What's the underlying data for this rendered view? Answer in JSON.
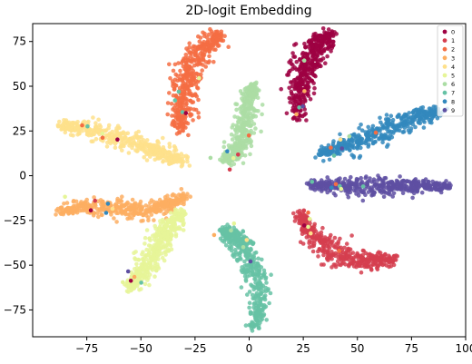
{
  "chart_data": {
    "type": "scatter",
    "title": "2D-logit Embedding",
    "xlabel": "",
    "ylabel": "",
    "xlim": [
      -100,
      100
    ],
    "ylim": [
      -90,
      85
    ],
    "xticks": [
      -75,
      -50,
      -25,
      0,
      25,
      50,
      75,
      100
    ],
    "yticks": [
      -75,
      -50,
      -25,
      0,
      25,
      50,
      75
    ],
    "grid": false,
    "legend_position": "top-right",
    "legend_labels": [
      "0",
      "1",
      "2",
      "3",
      "4",
      "5",
      "6",
      "7",
      "8",
      "9"
    ],
    "colors": [
      "#9e0142",
      "#d53e4f",
      "#f46d43",
      "#fdae61",
      "#fee08b",
      "#e6f598",
      "#abdda4",
      "#66c2a5",
      "#3288bd",
      "#5e4fa2"
    ],
    "clusters": [
      {
        "label": "0",
        "path": [
          [
            22,
            32
          ],
          [
            24,
            50
          ],
          [
            27,
            62
          ],
          [
            31,
            72
          ],
          [
            37,
            79
          ]
        ],
        "width": 8
      },
      {
        "label": "1",
        "path": [
          [
            24,
            -22
          ],
          [
            29,
            -33
          ],
          [
            36,
            -42
          ],
          [
            47,
            -46
          ],
          [
            58,
            -48
          ],
          [
            68,
            -46
          ]
        ],
        "width": 7
      },
      {
        "label": "2",
        "path": [
          [
            -32,
            26
          ],
          [
            -31,
            40
          ],
          [
            -29,
            52
          ],
          [
            -26,
            64
          ],
          [
            -20,
            73
          ],
          [
            -13,
            78
          ]
        ],
        "width": 8
      },
      {
        "label": "3",
        "path": [
          [
            -88,
            -20
          ],
          [
            -75,
            -17
          ],
          [
            -60,
            -18
          ],
          [
            -48,
            -20
          ],
          [
            -38,
            -17
          ],
          [
            -30,
            -12
          ]
        ],
        "width": 6
      },
      {
        "label": "4",
        "path": [
          [
            -88,
            28
          ],
          [
            -75,
            26
          ],
          [
            -62,
            22
          ],
          [
            -50,
            17
          ],
          [
            -40,
            12
          ],
          [
            -30,
            8
          ]
        ],
        "width": 7
      },
      {
        "label": "5",
        "path": [
          [
            -55,
            -63
          ],
          [
            -50,
            -55
          ],
          [
            -45,
            -45
          ],
          [
            -40,
            -35
          ],
          [
            -36,
            -27
          ],
          [
            -31,
            -20
          ]
        ],
        "width": 7
      },
      {
        "label": "6",
        "path": [
          [
            -12,
            8
          ],
          [
            -6,
            12
          ],
          [
            -3,
            22
          ],
          [
            -2,
            33
          ],
          [
            0,
            44
          ],
          [
            2,
            50
          ]
        ],
        "width": 6
      },
      {
        "label": "7",
        "path": [
          [
            -12,
            -30
          ],
          [
            -6,
            -35
          ],
          [
            0,
            -45
          ],
          [
            4,
            -58
          ],
          [
            5,
            -72
          ],
          [
            2,
            -85
          ]
        ],
        "width": 7
      },
      {
        "label": "8",
        "path": [
          [
            32,
            12
          ],
          [
            44,
            17
          ],
          [
            55,
            22
          ],
          [
            67,
            28
          ],
          [
            78,
            33
          ],
          [
            88,
            36
          ]
        ],
        "width": 7
      },
      {
        "label": "9",
        "path": [
          [
            28,
            -5
          ],
          [
            40,
            -5
          ],
          [
            52,
            -6
          ],
          [
            65,
            -6
          ],
          [
            78,
            -6
          ],
          [
            92,
            -6
          ]
        ],
        "width": 6
      }
    ]
  }
}
